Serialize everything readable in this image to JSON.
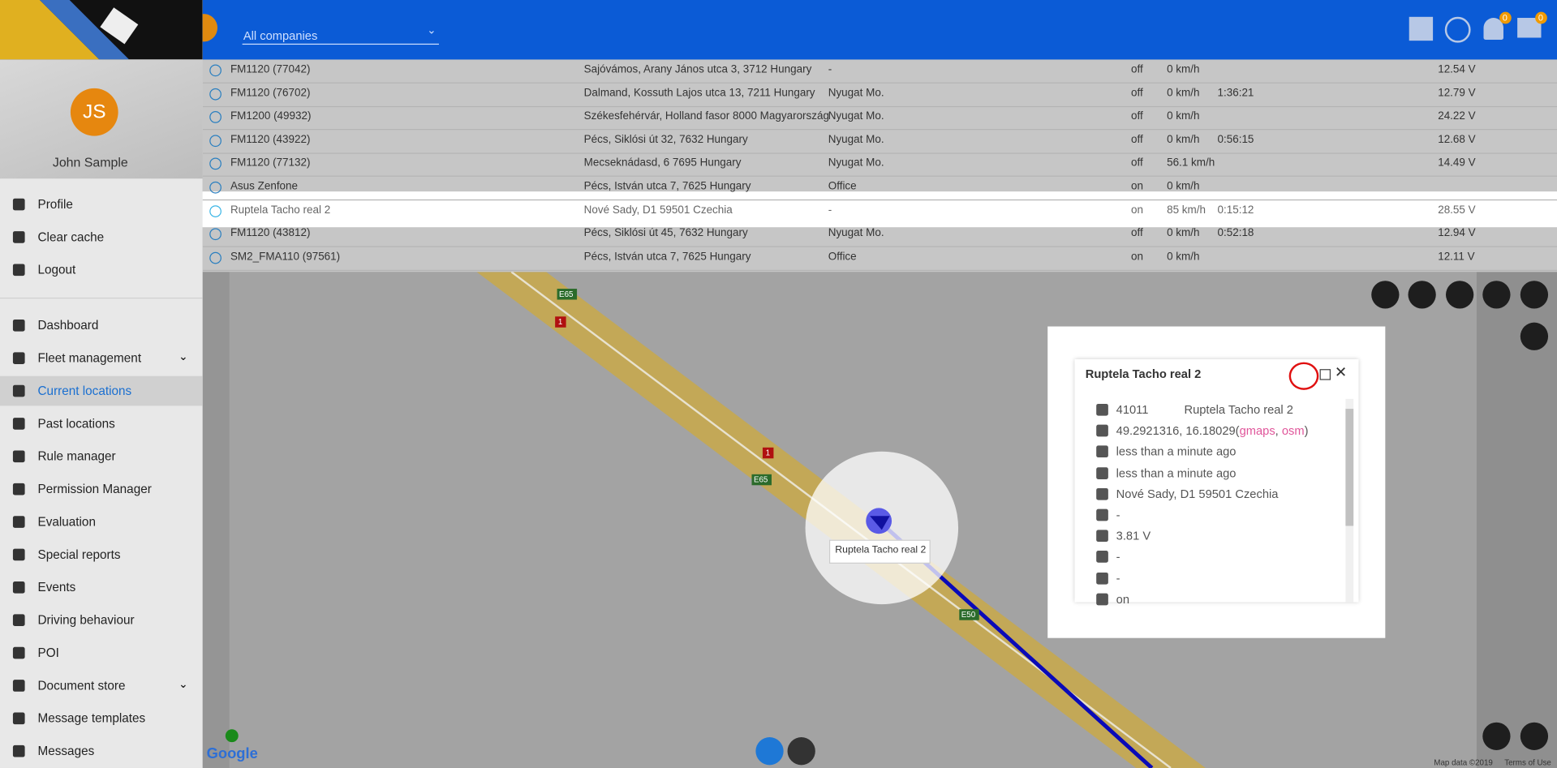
{
  "header": {
    "company_select": "All companies",
    "notification_count": "0",
    "message_count": "0"
  },
  "user": {
    "initials": "JS",
    "name": "John Sample"
  },
  "user_menu": [
    "Profile",
    "Clear cache",
    "Logout"
  ],
  "nav": [
    {
      "label": "Dashboard"
    },
    {
      "label": "Fleet management",
      "submenu": true
    },
    {
      "label": "Current locations",
      "active": true
    },
    {
      "label": "Past locations"
    },
    {
      "label": "Rule manager"
    },
    {
      "label": "Permission Manager"
    },
    {
      "label": "Evaluation"
    },
    {
      "label": "Special reports"
    },
    {
      "label": "Events"
    },
    {
      "label": "Driving behaviour"
    },
    {
      "label": "POI"
    },
    {
      "label": "Document store",
      "submenu": true
    },
    {
      "label": "Message templates"
    },
    {
      "label": "Messages"
    }
  ],
  "table": {
    "selected_row": 6,
    "rows": [
      [
        "FM1120 (77042)",
        "Sajóvámos, Arany János utca 3, 3712 Hungary",
        "-",
        "off",
        "0 km/h",
        null,
        "12.54 V"
      ],
      [
        "FM1120 (76702)",
        "Dalmand, Kossuth Lajos utca 13, 7211 Hungary",
        "Nyugat Mo.",
        "off",
        "0 km/h",
        "1:36:21",
        "12.79 V"
      ],
      [
        "FM1200 (49932)",
        "Székesfehérvár, Holland fasor 8000 Magyarország",
        "Nyugat Mo.",
        "off",
        "0 km/h",
        null,
        "24.22 V"
      ],
      [
        "FM1120 (43922)",
        "Pécs, Siklósi út 32, 7632 Hungary",
        "Nyugat Mo.",
        "off",
        "0 km/h",
        "0:56:15",
        "12.68 V"
      ],
      [
        "FM1120 (77132)",
        "Mecseknádasd, 6 7695 Hungary",
        "Nyugat Mo.",
        "off",
        "56.1 km/h",
        null,
        "14.49 V"
      ],
      [
        "Asus Zenfone",
        "Pécs, István utca 7, 7625 Hungary",
        "Office",
        "on",
        "0 km/h",
        null,
        null
      ],
      [
        "Ruptela Tacho real 2",
        "Nové Sady, D1 59501 Czechia",
        "-",
        "on",
        "85 km/h",
        "0:15:12",
        "28.55 V"
      ],
      [
        "FM1120 (43812)",
        "Pécs, Siklósi út 45, 7632 Hungary",
        "Nyugat Mo.",
        "off",
        "0 km/h",
        "0:52:18",
        "12.94 V"
      ],
      [
        "SM2_FMA110 (97561)",
        "Pécs, István utca 7, 7625 Hungary",
        "Office",
        "on",
        "0 km/h",
        null,
        "12.11 V"
      ]
    ]
  },
  "map": {
    "road_labels": [
      "E65",
      "E65",
      "E50"
    ],
    "route_markers": [
      "1",
      "1"
    ],
    "marker_tooltip": "Ruptela Tacho real 2",
    "logo": "Google",
    "attribution": "Map data ©2019",
    "terms": "Terms of Use"
  },
  "popup": {
    "title": "Ruptela Tacho real 2",
    "id": "41011",
    "device": "Ruptela Tacho real 2",
    "coordinates": "49.2921316, 16.18029",
    "links": {
      "open": "(",
      "gmaps": "gmaps",
      "sep": ", ",
      "osm": "osm",
      "close": ")"
    },
    "last_communication": "less than a minute ago",
    "last_position": "less than a minute ago",
    "address": "Nové Sady, D1 59501 Czechia",
    "tacho": "-",
    "battery": "3.81 V",
    "driver": "-",
    "phone": "-",
    "ignition": "on"
  }
}
